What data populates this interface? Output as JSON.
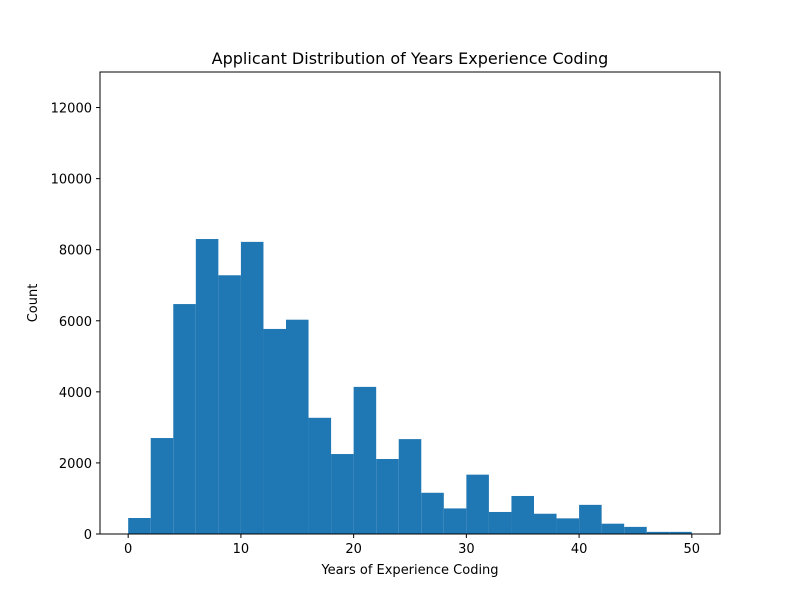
{
  "chart_data": {
    "type": "bar",
    "title": "Applicant Distribution of Years Experience Coding",
    "xlabel": "Years of Experience Coding",
    "ylabel": "Count",
    "bar_color": "#1f77b4",
    "xlim": [
      -2.5,
      52.5
    ],
    "ylim": [
      0,
      13000
    ],
    "xticks": [
      0,
      10,
      20,
      30,
      40,
      50
    ],
    "yticks": [
      0,
      2000,
      4000,
      6000,
      8000,
      10000,
      12000
    ],
    "bin_edges": [
      0,
      2,
      4,
      6,
      8,
      10,
      12,
      14,
      16,
      18,
      20,
      22,
      24,
      26,
      28,
      30,
      32,
      34,
      36,
      38,
      40,
      42,
      44,
      46,
      48,
      50
    ],
    "values": [
      450,
      2700,
      6470,
      8300,
      7280,
      8220,
      5770,
      6030,
      3270,
      2250,
      4140,
      2110,
      2670,
      1160,
      720,
      1670,
      620,
      1070,
      570,
      440,
      820,
      290,
      200,
      60,
      60
    ],
    "grid": false,
    "legend": "none"
  }
}
